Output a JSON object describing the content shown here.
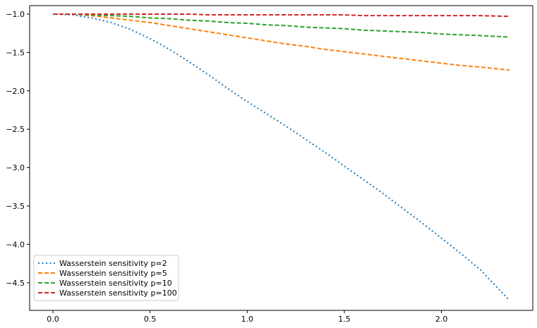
{
  "chart_data": {
    "type": "line",
    "title": "",
    "xlabel": "",
    "ylabel": "",
    "xlim": [
      -0.12,
      2.47
    ],
    "ylim": [
      -4.86,
      -0.89
    ],
    "x_ticks": [
      0.0,
      0.5,
      1.0,
      1.5,
      2.0
    ],
    "x_tick_labels": [
      "0.0",
      "0.5",
      "1.0",
      "1.5",
      "2.0"
    ],
    "y_ticks": [
      -1.0,
      -1.5,
      -2.0,
      -2.5,
      -3.0,
      -3.5,
      -4.0,
      -4.5
    ],
    "y_tick_labels": [
      "−1.0",
      "−1.5",
      "−2.0",
      "−2.5",
      "−3.0",
      "−3.5",
      "−4.0",
      "−4.5"
    ],
    "grid": false,
    "legend_position": "lower-left",
    "x": [
      0.0,
      0.1,
      0.2,
      0.3,
      0.4,
      0.5,
      0.6,
      0.7,
      0.8,
      0.9,
      1.0,
      1.1,
      1.2,
      1.3,
      1.4,
      1.5,
      1.6,
      1.7,
      1.8,
      1.9,
      2.0,
      2.1,
      2.2,
      2.35
    ],
    "series": [
      {
        "name": "Wasserstein sensitivity p=2",
        "color": "#1f77b4",
        "dash": "dotted",
        "values": [
          -1.0,
          -1.01,
          -1.05,
          -1.11,
          -1.2,
          -1.32,
          -1.46,
          -1.62,
          -1.79,
          -1.97,
          -2.14,
          -2.3,
          -2.46,
          -2.63,
          -2.8,
          -2.98,
          -3.16,
          -3.34,
          -3.53,
          -3.72,
          -3.92,
          -4.12,
          -4.33,
          -4.73
        ]
      },
      {
        "name": "Wasserstein sensitivity p=5",
        "color": "#ff7f0e",
        "dash": "dashed",
        "values": [
          -1.0,
          -1.0,
          -1.02,
          -1.05,
          -1.08,
          -1.11,
          -1.15,
          -1.19,
          -1.23,
          -1.27,
          -1.31,
          -1.35,
          -1.39,
          -1.42,
          -1.46,
          -1.49,
          -1.52,
          -1.55,
          -1.58,
          -1.61,
          -1.64,
          -1.67,
          -1.69,
          -1.73
        ]
      },
      {
        "name": "Wasserstein sensitivity p=10",
        "color": "#2ca02c",
        "dash": "dashed",
        "values": [
          -1.0,
          -1.0,
          -1.01,
          -1.02,
          -1.03,
          -1.05,
          -1.06,
          -1.08,
          -1.09,
          -1.11,
          -1.12,
          -1.14,
          -1.15,
          -1.17,
          -1.18,
          -1.19,
          -1.21,
          -1.22,
          -1.23,
          -1.24,
          -1.26,
          -1.27,
          -1.28,
          -1.3
        ]
      },
      {
        "name": "Wasserstein sensitivity p=100",
        "color": "#d62728",
        "dash": "dashed",
        "values": [
          -1.0,
          -1.0,
          -1.0,
          -1.0,
          -1.0,
          -1.0,
          -1.0,
          -1.0,
          -1.01,
          -1.01,
          -1.01,
          -1.01,
          -1.01,
          -1.01,
          -1.01,
          -1.01,
          -1.02,
          -1.02,
          -1.02,
          -1.02,
          -1.02,
          -1.02,
          -1.02,
          -1.03
        ]
      }
    ]
  }
}
